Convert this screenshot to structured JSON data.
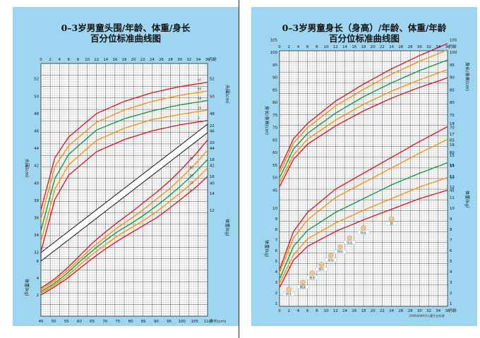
{
  "left": {
    "title_line1": "0–3岁男童头围/年龄、体重/身长",
    "title_line2": "百分位标准曲线图",
    "top_axis": {
      "ticks": [
        "0",
        "2",
        "4",
        "6",
        "8",
        "10",
        "12",
        "14",
        "16",
        "18",
        "20",
        "22",
        "24",
        "26",
        "28",
        "30",
        "32",
        "34",
        "36"
      ],
      "unit": "月龄"
    },
    "bottom_axis": {
      "ticks": [
        "45",
        "50",
        "55",
        "60",
        "65",
        "70",
        "75",
        "80",
        "85",
        "90",
        "95",
        "100",
        "105",
        "110"
      ],
      "unit": "身长(cm)"
    },
    "left_head_ticks": [
      "32",
      "34",
      "36",
      "38",
      "40",
      "42",
      "44",
      "46",
      "48",
      "50",
      "52"
    ],
    "right_head_ticks": [
      "40",
      "42",
      "44",
      "46",
      "48",
      "50",
      "52"
    ],
    "head_axis_label": "头围(cm)",
    "right_weight_ticks": [
      "12",
      "14",
      "16",
      "18",
      "20",
      "22"
    ],
    "left_weight_ticks": [
      "2",
      "4",
      "6"
    ],
    "weight_axis_label": "体重(kg)",
    "percentile_labels": [
      "97",
      "85",
      "50",
      "15",
      "3"
    ]
  },
  "right": {
    "title_line1": "0–3岁男童身长（身高）/年龄、体重/年龄",
    "title_line2": "百分位标准曲线图",
    "top_axis": {
      "ticks": [
        "0",
        "2",
        "4",
        "6",
        "8",
        "10",
        "12",
        "14",
        "16",
        "18",
        "20",
        "22",
        "24",
        "26",
        "28",
        "30",
        "32",
        "34",
        "36"
      ],
      "unit": "月龄"
    },
    "length_ticks": [
      "45",
      "50",
      "55",
      "60",
      "65",
      "70",
      "75",
      "80",
      "85",
      "90",
      "95",
      "100",
      "105"
    ],
    "length_axis_label": "身长/身高(cm)",
    "weight_ticks": [
      "1",
      "2",
      "3",
      "4",
      "5",
      "6",
      "7",
      "8",
      "9",
      "10",
      "11",
      "12",
      "13",
      "14",
      "15",
      "16",
      "17",
      "18"
    ],
    "weight_axis_label": "体重(kg)",
    "milestone_labels": [
      "抬头",
      "翻身",
      "独坐",
      "爬行",
      "扶站",
      "独站",
      "扶走",
      "独走",
      "跑"
    ],
    "footer": "2006年WHO儿童生长标准"
  },
  "chart_data": [
    {
      "type": "line",
      "title": "0–3岁男童头围/年龄 百分位标准曲线",
      "xlabel": "月龄",
      "ylabel": "头围(cm)",
      "xlim": [
        0,
        36
      ],
      "ylim": [
        31,
        53
      ],
      "x": [
        0,
        3,
        6,
        12,
        18,
        24,
        30,
        36
      ],
      "series": [
        {
          "name": "97",
          "color": "#e0101a",
          "values": [
            36.9,
            42.9,
            45.3,
            48.0,
            49.4,
            50.4,
            51.1,
            51.6
          ]
        },
        {
          "name": "85",
          "color": "#ff8c00",
          "values": [
            35.8,
            41.9,
            44.3,
            47.0,
            48.4,
            49.4,
            50.1,
            50.6
          ]
        },
        {
          "name": "50",
          "color": "#009a3c",
          "values": [
            34.5,
            40.5,
            43.3,
            46.1,
            47.4,
            48.3,
            49.0,
            49.5
          ]
        },
        {
          "name": "15",
          "color": "#ff8c00",
          "values": [
            33.3,
            39.3,
            42.1,
            44.9,
            46.3,
            47.3,
            47.9,
            48.4
          ]
        },
        {
          "name": "3",
          "color": "#e0101a",
          "values": [
            32.1,
            38.1,
            40.9,
            43.6,
            45.0,
            46.0,
            46.7,
            47.2
          ]
        }
      ]
    },
    {
      "type": "line",
      "title": "0–3岁男童体重/身长 百分位标准曲线",
      "xlabel": "身长(cm)",
      "ylabel": "体重(kg)",
      "xlim": [
        45,
        110
      ],
      "ylim": [
        1,
        23
      ],
      "x": [
        45,
        50,
        55,
        60,
        65,
        70,
        75,
        80,
        85,
        90,
        95,
        100,
        105,
        110
      ],
      "series": [
        {
          "name": "97",
          "color": "#e0101a",
          "values": [
            2.8,
            3.8,
            5.1,
            6.6,
            8.1,
            9.4,
            10.6,
            11.7,
            12.9,
            14.1,
            15.4,
            16.9,
            18.5,
            20.3
          ]
        },
        {
          "name": "85",
          "color": "#ff8c00",
          "values": [
            2.6,
            3.6,
            4.8,
            6.2,
            7.6,
            8.8,
            10.0,
            11.0,
            12.1,
            13.3,
            14.5,
            15.9,
            17.4,
            19.1
          ]
        },
        {
          "name": "50",
          "color": "#009a3c",
          "values": [
            2.4,
            3.3,
            4.5,
            5.9,
            7.2,
            8.4,
            9.5,
            10.4,
            11.4,
            12.5,
            13.7,
            15.0,
            16.4,
            18.0
          ]
        },
        {
          "name": "15",
          "color": "#ff8c00",
          "values": [
            2.2,
            3.1,
            4.2,
            5.5,
            6.8,
            7.9,
            9.0,
            9.9,
            10.8,
            11.8,
            13.0,
            14.2,
            15.5,
            17.0
          ]
        },
        {
          "name": "3",
          "color": "#e0101a",
          "values": [
            2.0,
            2.9,
            3.9,
            5.1,
            6.3,
            7.4,
            8.4,
            9.3,
            10.2,
            11.1,
            12.2,
            13.4,
            14.6,
            16.0
          ]
        }
      ]
    },
    {
      "type": "line",
      "title": "0–3岁男童身长（身高）/年龄 百分位标准曲线",
      "xlabel": "月龄",
      "ylabel": "身长/身高(cm)",
      "xlim": [
        0,
        36
      ],
      "ylim": [
        42,
        108
      ],
      "x": [
        0,
        3,
        6,
        12,
        18,
        24,
        30,
        36
      ],
      "series": [
        {
          "name": "97",
          "color": "#e0101a",
          "values": [
            53.4,
            65.5,
            71.6,
            80.5,
            87.3,
            93.4,
            98.7,
            103.5
          ]
        },
        {
          "name": "85",
          "color": "#ff8c00",
          "values": [
            51.8,
            63.8,
            69.9,
            78.6,
            85.2,
            91.3,
            96.4,
            101.0
          ]
        },
        {
          "name": "50",
          "color": "#009a3c",
          "values": [
            49.9,
            61.4,
            67.6,
            75.7,
            82.3,
            87.8,
            92.7,
            96.9
          ]
        },
        {
          "name": "15",
          "color": "#ff8c00",
          "values": [
            47.9,
            59.1,
            65.3,
            72.9,
            79.2,
            84.5,
            89.0,
            93.1
          ]
        },
        {
          "name": "3",
          "color": "#e0101a",
          "values": [
            46.3,
            57.3,
            63.3,
            70.6,
            76.6,
            81.7,
            86.0,
            89.8
          ]
        }
      ]
    },
    {
      "type": "line",
      "title": "0–3岁男童体重/年龄 百分位标准曲线",
      "xlabel": "月龄",
      "ylabel": "体重(kg)",
      "xlim": [
        0,
        36
      ],
      "ylim": [
        1,
        18
      ],
      "x": [
        0,
        3,
        6,
        12,
        18,
        24,
        30,
        36
      ],
      "series": [
        {
          "name": "97",
          "color": "#e0101a",
          "values": [
            4.2,
            7.8,
            9.6,
            11.8,
            13.3,
            14.8,
            16.3,
            17.7
          ]
        },
        {
          "name": "85",
          "color": "#ff8c00",
          "values": [
            3.9,
            7.2,
            8.9,
            11.0,
            12.4,
            13.8,
            15.2,
            16.5
          ]
        },
        {
          "name": "50",
          "color": "#009a3c",
          "values": [
            3.3,
            6.4,
            7.9,
            9.6,
            10.9,
            12.2,
            13.3,
            14.3
          ]
        },
        {
          "name": "15",
          "color": "#ff8c00",
          "values": [
            2.9,
            5.6,
            7.1,
            8.6,
            9.8,
            10.9,
            12.0,
            12.9
          ]
        },
        {
          "name": "3",
          "color": "#e0101a",
          "values": [
            2.5,
            5.1,
            6.4,
            7.8,
            8.9,
            9.9,
            10.9,
            11.7
          ]
        }
      ]
    }
  ]
}
